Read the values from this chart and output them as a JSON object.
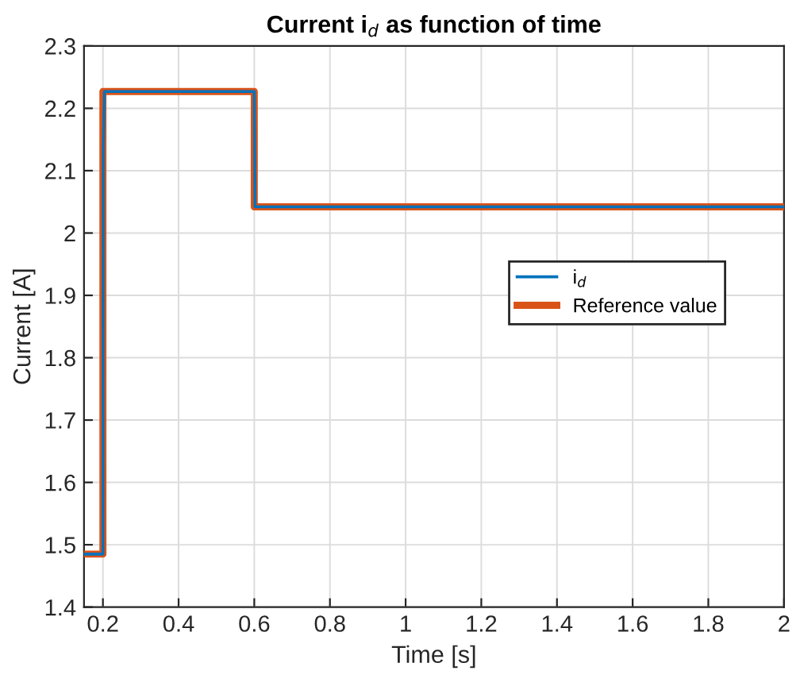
{
  "chart_data": {
    "type": "line",
    "title": "Current i$_{d}$ as function of time",
    "xlabel": "Time [s]",
    "ylabel": "Current [A]",
    "series": [
      {
        "name": "i$_{d}$",
        "color": "#0072bd",
        "x": [
          0.15,
          0.2,
          0.201,
          0.204,
          0.6,
          0.602,
          2
        ],
        "values": [
          1.485,
          1.485,
          2.14,
          2.227,
          2.227,
          2.042,
          2.042
        ]
      },
      {
        "name": "Reference value",
        "color": "#d95319",
        "x": [
          0.15,
          0.2,
          0.2,
          0.6,
          0.6,
          2
        ],
        "values": [
          1.485,
          1.485,
          2.227,
          2.227,
          2.042,
          2.042
        ]
      }
    ],
    "xlim": [
      0.15,
      2
    ],
    "xticks": [
      0.2,
      0.4,
      0.6,
      0.8,
      1,
      1.2,
      1.4,
      1.6,
      1.8,
      2
    ],
    "ylim": [
      1.4,
      2.3
    ],
    "yticks": [
      1.4,
      1.5,
      1.6,
      1.7,
      1.8,
      1.9,
      2,
      2.1,
      2.2,
      2.3
    ],
    "grid": true,
    "legend": "right",
    "line_style": "solid",
    "marker": "none"
  }
}
